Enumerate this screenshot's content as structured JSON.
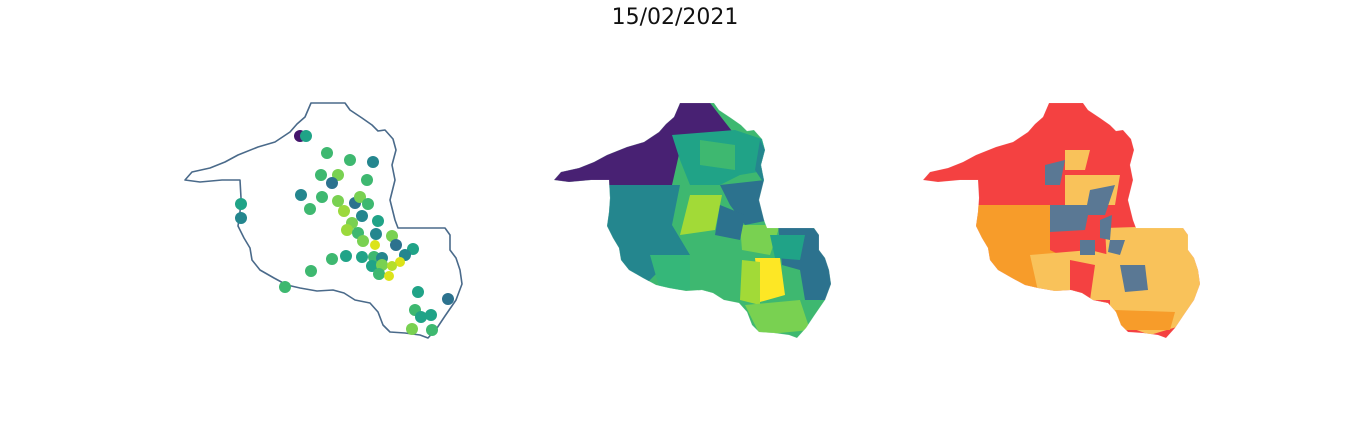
{
  "figure": {
    "title": "15/02/2021"
  },
  "map_panels": [
    {
      "kind": "outline_with_points",
      "outline_color": "#4a6a8a",
      "point_palette": "viridis"
    },
    {
      "kind": "choropleth",
      "palette": "viridis"
    },
    {
      "kind": "choropleth",
      "palette": [
        "#f44141",
        "#f9c25a",
        "#f79c2a",
        "#5a7894"
      ]
    }
  ]
}
